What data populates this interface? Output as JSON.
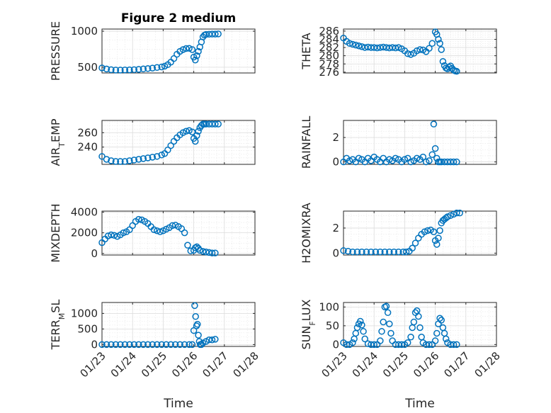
{
  "chart_data": [
    {
      "type": "scatter",
      "title": "Figure 2 medium",
      "ylabel": "PRESSURE",
      "ylim": [
        420,
        1030
      ],
      "yticks": [
        500,
        1000
      ],
      "ytick_labels": [
        "500",
        "1000"
      ],
      "xticks": [
        "01/23",
        "01/24",
        "01/25",
        "01/26",
        "01/27",
        "01/28"
      ],
      "xlabel": "",
      "grid": true,
      "marker_color": "#0072bd",
      "x": [
        0,
        0.15,
        0.3,
        0.45,
        0.6,
        0.75,
        0.9,
        1.05,
        1.2,
        1.35,
        1.5,
        1.65,
        1.8,
        1.95,
        2.05,
        2.15,
        2.25,
        2.35,
        2.45,
        2.55,
        2.65,
        2.75,
        2.85,
        2.95,
        3.0,
        3.05,
        3.1,
        3.15,
        3.2,
        3.25,
        3.3,
        3.35,
        3.4,
        3.5,
        3.6,
        3.7,
        3.8
      ],
      "y": [
        490,
        475,
        465,
        460,
        460,
        462,
        463,
        466,
        470,
        476,
        482,
        488,
        496,
        504,
        515,
        535,
        570,
        620,
        680,
        720,
        745,
        760,
        762,
        745,
        640,
        600,
        660,
        720,
        780,
        850,
        920,
        945,
        955,
        958,
        960,
        960,
        962
      ]
    },
    {
      "type": "scatter",
      "title": "",
      "ylabel": "THETA",
      "ylim": [
        275.8,
        286.5
      ],
      "yticks": [
        276,
        278,
        280,
        282,
        284,
        286
      ],
      "ytick_labels": [
        "276",
        "278",
        "280",
        "282",
        "284",
        "286"
      ],
      "xticks": [
        "01/23",
        "01/24",
        "01/25",
        "01/26",
        "01/27",
        "01/28"
      ],
      "xlabel": "",
      "grid": true,
      "marker_color": "#0072bd",
      "x": [
        0,
        0.1,
        0.2,
        0.3,
        0.4,
        0.5,
        0.6,
        0.7,
        0.8,
        0.9,
        1.0,
        1.1,
        1.2,
        1.3,
        1.4,
        1.5,
        1.6,
        1.7,
        1.8,
        1.9,
        2.0,
        2.1,
        2.2,
        2.3,
        2.4,
        2.5,
        2.6,
        2.7,
        2.8,
        2.9,
        3.0,
        3.05,
        3.1,
        3.15,
        3.2,
        3.25,
        3.3,
        3.35,
        3.4,
        3.45,
        3.5,
        3.55,
        3.6,
        3.65,
        3.7
      ],
      "y": [
        284.3,
        283.5,
        283.0,
        282.8,
        282.6,
        282.4,
        282.2,
        282.0,
        282.1,
        282.0,
        282.0,
        281.9,
        282.0,
        282.1,
        282.0,
        281.9,
        282.0,
        281.9,
        282.0,
        281.7,
        281.2,
        280.5,
        280.3,
        280.6,
        281.2,
        281.5,
        281.4,
        281.0,
        281.8,
        283.0,
        285.8,
        285.2,
        284.0,
        283.0,
        281.5,
        278.6,
        277.6,
        277.0,
        276.8,
        277.2,
        277.5,
        276.9,
        276.5,
        276.3,
        276.2
      ]
    },
    {
      "type": "scatter",
      "title": "",
      "ylabel": "AIR_TEMP",
      "ylim": [
        216,
        277
      ],
      "yticks": [
        240,
        260
      ],
      "ytick_labels": [
        "240",
        "260"
      ],
      "xticks": [
        "01/23",
        "01/24",
        "01/25",
        "01/26",
        "01/27",
        "01/28"
      ],
      "xlabel": "",
      "grid": true,
      "marker_color": "#0072bd",
      "x": [
        0,
        0.15,
        0.3,
        0.45,
        0.6,
        0.75,
        0.9,
        1.05,
        1.2,
        1.35,
        1.5,
        1.65,
        1.8,
        1.95,
        2.05,
        2.15,
        2.25,
        2.35,
        2.45,
        2.55,
        2.65,
        2.75,
        2.85,
        2.95,
        3.0,
        3.05,
        3.1,
        3.15,
        3.2,
        3.25,
        3.3,
        3.35,
        3.4,
        3.5,
        3.6,
        3.7,
        3.8
      ],
      "y": [
        227,
        223,
        221,
        220,
        220,
        220,
        221,
        222,
        223,
        224,
        225,
        226,
        227,
        229,
        231,
        236,
        242,
        248,
        253,
        257,
        260,
        262,
        263,
        261,
        252,
        248,
        256,
        262,
        267,
        270,
        272,
        272,
        272,
        272,
        272,
        272,
        272
      ]
    },
    {
      "type": "scatter",
      "title": "",
      "ylabel": "RAINFALL",
      "ylim": [
        -0.2,
        3.4
      ],
      "yticks": [
        0,
        2
      ],
      "ytick_labels": [
        "0",
        "2"
      ],
      "xticks": [
        "01/23",
        "01/24",
        "01/25",
        "01/26",
        "01/27",
        "01/28"
      ],
      "xlabel": "",
      "grid": true,
      "marker_color": "#0072bd",
      "x": [
        0,
        0.1,
        0.2,
        0.3,
        0.4,
        0.5,
        0.6,
        0.7,
        0.8,
        0.9,
        1.0,
        1.1,
        1.2,
        1.3,
        1.4,
        1.5,
        1.6,
        1.7,
        1.8,
        1.9,
        2.0,
        2.1,
        2.2,
        2.3,
        2.4,
        2.5,
        2.6,
        2.7,
        2.8,
        2.9,
        2.95,
        3.0,
        3.05,
        3.1,
        3.15,
        3.2,
        3.3,
        3.4,
        3.5,
        3.6,
        3.7
      ],
      "y": [
        0.0,
        0.3,
        0.1,
        0.2,
        0.0,
        0.3,
        0.2,
        0.0,
        0.3,
        0.1,
        0.4,
        0.2,
        0.0,
        0.3,
        0.0,
        0.2,
        0.1,
        0.3,
        0.2,
        0.0,
        0.2,
        0.3,
        0.0,
        0.1,
        0.3,
        0.2,
        0.4,
        0.0,
        0.1,
        0.6,
        3.1,
        1.1,
        0.3,
        0.0,
        0.0,
        0.0,
        0.0,
        0.0,
        0.0,
        0.0,
        0.0
      ]
    },
    {
      "type": "scatter",
      "title": "",
      "ylabel": "MIXDEPTH",
      "ylim": [
        -150,
        4100
      ],
      "yticks": [
        0,
        2000,
        4000
      ],
      "ytick_labels": [
        "0",
        "2000",
        "4000"
      ],
      "xticks": [
        "01/23",
        "01/24",
        "01/25",
        "01/26",
        "01/27",
        "01/28"
      ],
      "xlabel": "",
      "grid": true,
      "marker_color": "#0072bd",
      "x": [
        0,
        0.1,
        0.2,
        0.3,
        0.4,
        0.5,
        0.6,
        0.7,
        0.8,
        0.9,
        1.0,
        1.1,
        1.2,
        1.3,
        1.4,
        1.5,
        1.6,
        1.7,
        1.8,
        1.9,
        2.0,
        2.1,
        2.2,
        2.3,
        2.4,
        2.5,
        2.6,
        2.7,
        2.8,
        2.9,
        3.0,
        3.05,
        3.1,
        3.15,
        3.2,
        3.3,
        3.4,
        3.5,
        3.6,
        3.7
      ],
      "y": [
        1050,
        1400,
        1700,
        1800,
        1750,
        1650,
        1800,
        2000,
        2100,
        2300,
        2700,
        3100,
        3300,
        3250,
        3100,
        2900,
        2600,
        2300,
        2200,
        2100,
        2200,
        2350,
        2500,
        2700,
        2750,
        2600,
        2400,
        2000,
        800,
        250,
        300,
        550,
        650,
        500,
        300,
        200,
        150,
        100,
        50,
        50
      ]
    },
    {
      "type": "scatter",
      "title": "",
      "ylabel": "H2OMIXRA",
      "ylim": [
        -0.15,
        3.35
      ],
      "yticks": [
        0,
        2
      ],
      "ytick_labels": [
        "0",
        "2"
      ],
      "xticks": [
        "01/23",
        "01/24",
        "01/25",
        "01/26",
        "01/27",
        "01/28"
      ],
      "xlabel": "",
      "grid": true,
      "marker_color": "#0072bd",
      "x": [
        0,
        0.15,
        0.3,
        0.45,
        0.6,
        0.75,
        0.9,
        1.05,
        1.2,
        1.35,
        1.5,
        1.65,
        1.8,
        1.95,
        2.05,
        2.15,
        2.25,
        2.35,
        2.45,
        2.55,
        2.65,
        2.75,
        2.85,
        2.95,
        3.0,
        3.05,
        3.1,
        3.15,
        3.2,
        3.25,
        3.3,
        3.35,
        3.4,
        3.5,
        3.6,
        3.7,
        3.8
      ],
      "y": [
        0.2,
        0.15,
        0.1,
        0.1,
        0.1,
        0.1,
        0.1,
        0.1,
        0.1,
        0.1,
        0.1,
        0.1,
        0.1,
        0.1,
        0.1,
        0.15,
        0.4,
        0.8,
        1.2,
        1.5,
        1.7,
        1.8,
        1.85,
        1.7,
        1.0,
        0.7,
        1.2,
        1.8,
        2.4,
        2.6,
        2.7,
        2.8,
        2.9,
        3.0,
        3.1,
        3.2,
        3.2
      ]
    },
    {
      "type": "scatter",
      "title": "",
      "ylabel": "TERR_MSL",
      "ylim": [
        -60,
        1350
      ],
      "yticks": [
        0,
        500,
        1000
      ],
      "ytick_labels": [
        "0",
        "500",
        "1000"
      ],
      "xticks": [
        "01/23",
        "01/24",
        "01/25",
        "01/26",
        "01/27",
        "01/28"
      ],
      "xlabel": "Time",
      "grid": true,
      "marker_color": "#0072bd",
      "x": [
        0,
        0.15,
        0.3,
        0.45,
        0.6,
        0.75,
        0.9,
        1.05,
        1.2,
        1.35,
        1.5,
        1.65,
        1.8,
        1.95,
        2.1,
        2.25,
        2.4,
        2.55,
        2.7,
        2.85,
        2.95,
        3.0,
        3.03,
        3.06,
        3.09,
        3.12,
        3.15,
        3.18,
        3.21,
        3.25,
        3.3,
        3.4,
        3.5,
        3.6,
        3.7
      ],
      "y": [
        0,
        0,
        0,
        0,
        0,
        0,
        0,
        0,
        0,
        0,
        0,
        0,
        0,
        0,
        0,
        0,
        0,
        0,
        0,
        0,
        0,
        450,
        1250,
        900,
        600,
        650,
        300,
        100,
        0,
        0,
        50,
        100,
        150,
        150,
        170
      ]
    },
    {
      "type": "scatter",
      "title": "",
      "ylabel": "SUN_FLUX",
      "ylim": [
        -5,
        112
      ],
      "yticks": [
        0,
        50,
        100
      ],
      "ytick_labels": [
        "0",
        "50",
        "100"
      ],
      "xticks": [
        "01/23",
        "01/24",
        "01/25",
        "01/26",
        "01/27",
        "01/28"
      ],
      "xlabel": "Time",
      "grid": true,
      "marker_color": "#0072bd",
      "x": [
        0,
        0.1,
        0.2,
        0.3,
        0.35,
        0.4,
        0.45,
        0.5,
        0.55,
        0.6,
        0.65,
        0.7,
        0.8,
        0.9,
        1.0,
        1.1,
        1.2,
        1.25,
        1.3,
        1.35,
        1.4,
        1.45,
        1.5,
        1.55,
        1.6,
        1.7,
        1.8,
        1.9,
        2.0,
        2.1,
        2.2,
        2.25,
        2.3,
        2.35,
        2.4,
        2.45,
        2.5,
        2.55,
        2.6,
        2.7,
        2.8,
        2.9,
        3.0,
        3.05,
        3.1,
        3.15,
        3.2,
        3.25,
        3.3,
        3.35,
        3.4,
        3.5,
        3.6,
        3.7
      ],
      "y": [
        5,
        0,
        0,
        5,
        15,
        30,
        45,
        55,
        62,
        52,
        35,
        15,
        2,
        0,
        0,
        0,
        10,
        35,
        60,
        100,
        102,
        85,
        55,
        30,
        10,
        0,
        0,
        0,
        0,
        5,
        20,
        45,
        60,
        85,
        90,
        75,
        45,
        20,
        5,
        0,
        0,
        0,
        10,
        30,
        55,
        70,
        65,
        45,
        30,
        15,
        5,
        0,
        0,
        0
      ]
    }
  ]
}
